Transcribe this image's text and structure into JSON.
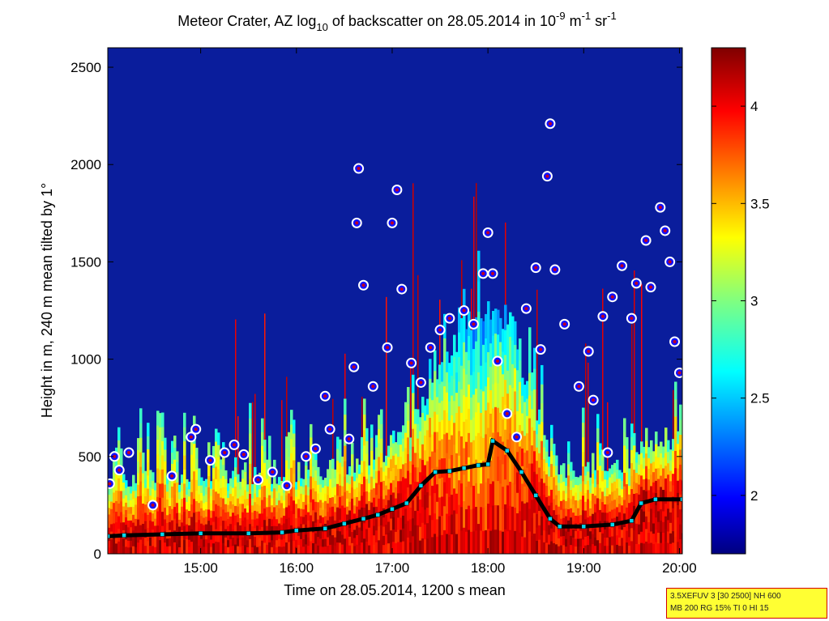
{
  "title": {
    "prefix": "Meteor Crater, AZ log",
    "sub": "10",
    "middle": " of backscatter on 28.05.2014 in 10",
    "sup1": "-9",
    "unit1": " m",
    "sup2": "-1",
    "unit2": " sr",
    "sup3": "-1"
  },
  "chart_data": {
    "type": "heatmap",
    "xlabel": "Time on 28.05.2014, 1200 s mean",
    "ylabel": "Height in m, 240 m mean tilted by 1°",
    "x_ticks": [
      "15:00",
      "16:00",
      "17:00",
      "18:00",
      "19:00",
      "20:00"
    ],
    "x_tick_hours": [
      15,
      16,
      17,
      18,
      19,
      20
    ],
    "xlim_hours": [
      14.03,
      20.03
    ],
    "y_ticks": [
      0,
      500,
      1000,
      1500,
      2000,
      2500
    ],
    "ylim": [
      0,
      2600
    ],
    "colorbar_ticks": [
      "2",
      "2.5",
      "3",
      "3.5",
      "4"
    ],
    "colorbar_tick_values": [
      2,
      2.5,
      3,
      3.5,
      4
    ],
    "color_range": [
      1.7,
      4.3
    ],
    "colormap": "jet",
    "background_color": "#0a1d9c",
    "mixing_layer_series": [
      [
        14.03,
        90
      ],
      [
        14.2,
        95
      ],
      [
        14.6,
        100
      ],
      [
        15.0,
        105
      ],
      [
        15.5,
        105
      ],
      [
        15.85,
        110
      ],
      [
        16.0,
        120
      ],
      [
        16.3,
        130
      ],
      [
        16.5,
        155
      ],
      [
        16.7,
        180
      ],
      [
        16.85,
        200
      ],
      [
        17.0,
        230
      ],
      [
        17.15,
        260
      ],
      [
        17.3,
        350
      ],
      [
        17.45,
        420
      ],
      [
        17.6,
        425
      ],
      [
        17.75,
        440
      ],
      [
        17.9,
        455
      ],
      [
        18.0,
        460
      ],
      [
        18.05,
        580
      ],
      [
        18.2,
        530
      ],
      [
        18.35,
        420
      ],
      [
        18.5,
        300
      ],
      [
        18.65,
        180
      ],
      [
        18.75,
        140
      ],
      [
        19.0,
        140
      ],
      [
        19.3,
        150
      ],
      [
        19.5,
        170
      ],
      [
        19.6,
        260
      ],
      [
        19.75,
        280
      ],
      [
        20.03,
        280
      ]
    ],
    "series_colors": {
      "mixing_layer": "#000000",
      "markers": "#00d8f0",
      "cloud_points_fill": "#1010ff",
      "cloud_points_ring": "#ffffff",
      "cloud_points_core": "#c00020"
    },
    "cloud_points": [
      [
        14.05,
        360
      ],
      [
        14.1,
        500
      ],
      [
        14.15,
        430
      ],
      [
        14.25,
        520
      ],
      [
        14.5,
        250
      ],
      [
        14.7,
        400
      ],
      [
        14.9,
        600
      ],
      [
        14.95,
        640
      ],
      [
        15.1,
        480
      ],
      [
        15.25,
        520
      ],
      [
        15.35,
        560
      ],
      [
        15.45,
        510
      ],
      [
        15.6,
        380
      ],
      [
        15.75,
        420
      ],
      [
        15.9,
        350
      ],
      [
        16.1,
        500
      ],
      [
        16.2,
        540
      ],
      [
        16.3,
        810
      ],
      [
        16.35,
        640
      ],
      [
        16.55,
        590
      ],
      [
        16.6,
        960
      ],
      [
        16.63,
        1700
      ],
      [
        16.65,
        1980
      ],
      [
        16.7,
        1380
      ],
      [
        16.8,
        860
      ],
      [
        16.95,
        1060
      ],
      [
        17.0,
        1700
      ],
      [
        17.05,
        1870
      ],
      [
        17.1,
        1360
      ],
      [
        17.2,
        980
      ],
      [
        17.3,
        880
      ],
      [
        17.4,
        1060
      ],
      [
        17.5,
        1150
      ],
      [
        17.6,
        1210
      ],
      [
        17.75,
        1250
      ],
      [
        17.85,
        1180
      ],
      [
        17.95,
        1440
      ],
      [
        18.0,
        1650
      ],
      [
        18.05,
        1440
      ],
      [
        18.1,
        990
      ],
      [
        18.2,
        720
      ],
      [
        18.3,
        600
      ],
      [
        18.4,
        1260
      ],
      [
        18.5,
        1470
      ],
      [
        18.55,
        1050
      ],
      [
        18.62,
        1940
      ],
      [
        18.65,
        2210
      ],
      [
        18.7,
        1460
      ],
      [
        18.8,
        1180
      ],
      [
        18.95,
        860
      ],
      [
        19.05,
        1040
      ],
      [
        19.1,
        790
      ],
      [
        19.2,
        1220
      ],
      [
        19.25,
        520
      ],
      [
        19.3,
        1320
      ],
      [
        19.4,
        1480
      ],
      [
        19.5,
        1210
      ],
      [
        19.55,
        1390
      ],
      [
        19.65,
        1610
      ],
      [
        19.7,
        1370
      ],
      [
        19.8,
        1780
      ],
      [
        19.85,
        1660
      ],
      [
        19.9,
        1500
      ],
      [
        19.95,
        1090
      ],
      [
        20.0,
        930
      ]
    ]
  },
  "info_box": {
    "line1": "3.5XEFUV 3 [30 2500] NH 600",
    "line2": "MB 200 RG 15% TI 0 HI 15"
  }
}
